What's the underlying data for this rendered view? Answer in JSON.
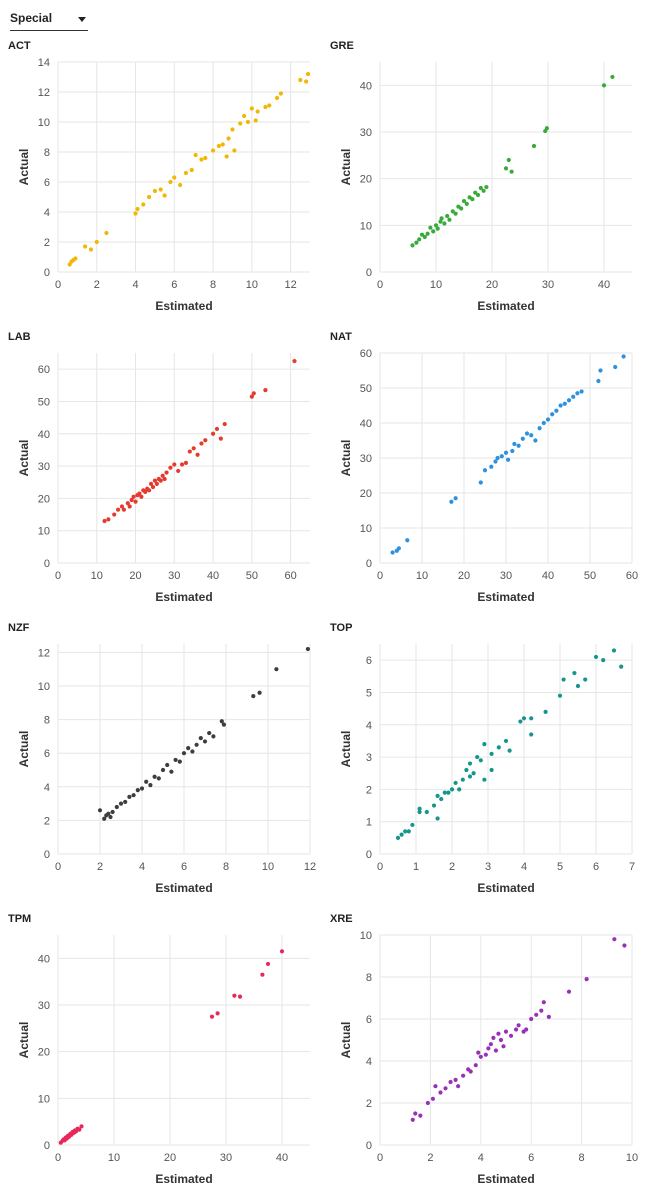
{
  "filter": {
    "selected": "Special"
  },
  "charts": [
    {
      "type": "scatter",
      "title": "ACT",
      "color": "#f2b705",
      "xlabel": "Estimated",
      "ylabel": "Actual",
      "xlim": [
        0,
        13
      ],
      "ylim": [
        0,
        14
      ],
      "xticks": [
        0,
        2,
        4,
        6,
        8,
        10,
        12
      ],
      "yticks": [
        0,
        2,
        4,
        6,
        8,
        10,
        12,
        14
      ],
      "points": [
        [
          0.6,
          0.5
        ],
        [
          0.7,
          0.7
        ],
        [
          0.8,
          0.8
        ],
        [
          0.9,
          0.9
        ],
        [
          1.4,
          1.7
        ],
        [
          1.7,
          1.5
        ],
        [
          2.0,
          2.0
        ],
        [
          2.5,
          2.6
        ],
        [
          4.0,
          3.9
        ],
        [
          4.1,
          4.2
        ],
        [
          4.4,
          4.5
        ],
        [
          4.7,
          5.0
        ],
        [
          5.0,
          5.4
        ],
        [
          5.3,
          5.5
        ],
        [
          5.5,
          5.1
        ],
        [
          5.8,
          6.0
        ],
        [
          6.0,
          6.3
        ],
        [
          6.3,
          5.8
        ],
        [
          6.6,
          6.6
        ],
        [
          6.9,
          6.8
        ],
        [
          7.1,
          7.8
        ],
        [
          7.4,
          7.5
        ],
        [
          7.6,
          7.6
        ],
        [
          8.0,
          8.1
        ],
        [
          8.3,
          8.4
        ],
        [
          8.5,
          8.5
        ],
        [
          8.7,
          7.7
        ],
        [
          8.8,
          8.9
        ],
        [
          9.0,
          9.5
        ],
        [
          9.1,
          8.1
        ],
        [
          9.4,
          9.9
        ],
        [
          9.6,
          10.4
        ],
        [
          9.8,
          10.0
        ],
        [
          10.0,
          10.9
        ],
        [
          10.2,
          10.1
        ],
        [
          10.3,
          10.7
        ],
        [
          10.7,
          11.0
        ],
        [
          10.9,
          11.1
        ],
        [
          11.3,
          11.6
        ],
        [
          11.5,
          11.9
        ],
        [
          12.5,
          12.8
        ],
        [
          12.8,
          12.7
        ],
        [
          12.9,
          13.2
        ]
      ]
    },
    {
      "type": "scatter",
      "title": "GRE",
      "color": "#3aaa3a",
      "xlabel": "Estimated",
      "ylabel": "Actual",
      "xlim": [
        0,
        45
      ],
      "ylim": [
        0,
        45
      ],
      "xticks": [
        0,
        10,
        20,
        30,
        40
      ],
      "yticks": [
        0,
        10,
        20,
        30,
        40
      ],
      "points": [
        [
          5.8,
          5.7
        ],
        [
          6.5,
          6.3
        ],
        [
          7.0,
          7.0
        ],
        [
          7.5,
          8.0
        ],
        [
          8.0,
          7.5
        ],
        [
          8.5,
          8.2
        ],
        [
          9.0,
          9.5
        ],
        [
          9.5,
          8.7
        ],
        [
          10.0,
          10.0
        ],
        [
          10.3,
          9.3
        ],
        [
          10.8,
          10.8
        ],
        [
          11.0,
          11.5
        ],
        [
          11.5,
          10.4
        ],
        [
          12.0,
          12.0
        ],
        [
          12.4,
          11.2
        ],
        [
          13.0,
          13.0
        ],
        [
          13.5,
          12.5
        ],
        [
          14.0,
          14.0
        ],
        [
          14.5,
          13.6
        ],
        [
          15.0,
          15.2
        ],
        [
          15.5,
          14.6
        ],
        [
          16.0,
          16.0
        ],
        [
          16.5,
          15.6
        ],
        [
          17.0,
          17.0
        ],
        [
          17.5,
          16.5
        ],
        [
          18.0,
          18.0
        ],
        [
          18.5,
          17.4
        ],
        [
          19.0,
          18.2
        ],
        [
          22.5,
          22.2
        ],
        [
          23.0,
          24.0
        ],
        [
          23.5,
          21.5
        ],
        [
          27.5,
          27.0
        ],
        [
          29.5,
          30.2
        ],
        [
          29.8,
          30.8
        ],
        [
          40.0,
          40.0
        ],
        [
          41.5,
          41.8
        ]
      ]
    },
    {
      "type": "scatter",
      "title": "LAB",
      "color": "#e53a2e",
      "xlabel": "Estimated",
      "ylabel": "Actual",
      "xlim": [
        0,
        65
      ],
      "ylim": [
        0,
        65
      ],
      "xticks": [
        0,
        10,
        20,
        30,
        40,
        50,
        60
      ],
      "yticks": [
        0,
        10,
        20,
        30,
        40,
        50,
        60
      ],
      "points": [
        [
          12.0,
          13.0
        ],
        [
          13.0,
          13.5
        ],
        [
          14.5,
          15.0
        ],
        [
          15.5,
          16.5
        ],
        [
          16.5,
          17.5
        ],
        [
          17.0,
          16.5
        ],
        [
          18.0,
          18.5
        ],
        [
          18.5,
          17.5
        ],
        [
          19.0,
          19.5
        ],
        [
          19.5,
          20.5
        ],
        [
          20.0,
          19.0
        ],
        [
          20.5,
          21.0
        ],
        [
          21.0,
          21.5
        ],
        [
          21.5,
          20.5
        ],
        [
          22.0,
          22.5
        ],
        [
          22.5,
          22.0
        ],
        [
          23.0,
          23.0
        ],
        [
          23.5,
          22.5
        ],
        [
          24.0,
          24.5
        ],
        [
          24.5,
          23.5
        ],
        [
          25.0,
          25.5
        ],
        [
          25.5,
          24.5
        ],
        [
          26.0,
          26.0
        ],
        [
          26.5,
          25.5
        ],
        [
          27.0,
          27.0
        ],
        [
          27.5,
          26.0
        ],
        [
          28.0,
          28.0
        ],
        [
          29.0,
          29.5
        ],
        [
          30.0,
          30.5
        ],
        [
          31.0,
          28.5
        ],
        [
          32.0,
          30.5
        ],
        [
          33.0,
          31.0
        ],
        [
          34.0,
          34.5
        ],
        [
          35.0,
          35.5
        ],
        [
          36.0,
          33.5
        ],
        [
          37.0,
          37.0
        ],
        [
          38.0,
          38.0
        ],
        [
          40.0,
          40.0
        ],
        [
          41.0,
          41.5
        ],
        [
          42.0,
          38.5
        ],
        [
          43.0,
          43.0
        ],
        [
          50.0,
          51.5
        ],
        [
          50.5,
          52.5
        ],
        [
          53.5,
          53.5
        ],
        [
          61.0,
          62.5
        ]
      ]
    },
    {
      "type": "scatter",
      "title": "NAT",
      "color": "#2f90db",
      "xlabel": "Estimated",
      "ylabel": "Actual",
      "xlim": [
        0,
        60
      ],
      "ylim": [
        0,
        60
      ],
      "xticks": [
        0,
        10,
        20,
        30,
        40,
        50,
        60
      ],
      "yticks": [
        0,
        10,
        20,
        30,
        40,
        50,
        60
      ],
      "points": [
        [
          3.0,
          3.0
        ],
        [
          4.0,
          3.5
        ],
        [
          4.5,
          4.2
        ],
        [
          6.5,
          6.5
        ],
        [
          17.0,
          17.5
        ],
        [
          18.0,
          18.5
        ],
        [
          24.0,
          23.0
        ],
        [
          25.0,
          26.5
        ],
        [
          26.5,
          27.5
        ],
        [
          27.5,
          29.0
        ],
        [
          28.0,
          30.0
        ],
        [
          29.0,
          30.5
        ],
        [
          30.0,
          31.5
        ],
        [
          30.5,
          29.5
        ],
        [
          31.5,
          32.0
        ],
        [
          32.0,
          34.0
        ],
        [
          33.0,
          33.5
        ],
        [
          34.0,
          35.5
        ],
        [
          35.0,
          37.0
        ],
        [
          36.0,
          36.5
        ],
        [
          37.0,
          35.0
        ],
        [
          38.0,
          38.5
        ],
        [
          39.0,
          40.0
        ],
        [
          40.0,
          41.0
        ],
        [
          41.0,
          42.5
        ],
        [
          42.0,
          43.5
        ],
        [
          43.0,
          45.0
        ],
        [
          44.0,
          45.5
        ],
        [
          45.0,
          46.5
        ],
        [
          46.0,
          47.5
        ],
        [
          47.0,
          48.5
        ],
        [
          48.0,
          49.0
        ],
        [
          52.0,
          52.0
        ],
        [
          52.5,
          55.0
        ],
        [
          56.0,
          56.0
        ],
        [
          58.0,
          59.0
        ]
      ]
    },
    {
      "type": "scatter",
      "title": "NZF",
      "color": "#3d3d3d",
      "xlabel": "Estimated",
      "ylabel": "Actual",
      "xlim": [
        0,
        12
      ],
      "ylim": [
        0,
        12.5
      ],
      "xticks": [
        0,
        2,
        4,
        6,
        8,
        10,
        12
      ],
      "yticks": [
        0,
        2,
        4,
        6,
        8,
        10,
        12
      ],
      "points": [
        [
          2.0,
          2.6
        ],
        [
          2.2,
          2.1
        ],
        [
          2.3,
          2.3
        ],
        [
          2.4,
          2.4
        ],
        [
          2.5,
          2.2
        ],
        [
          2.6,
          2.5
        ],
        [
          2.8,
          2.8
        ],
        [
          3.0,
          3.0
        ],
        [
          3.2,
          3.1
        ],
        [
          3.4,
          3.4
        ],
        [
          3.6,
          3.5
        ],
        [
          3.8,
          3.8
        ],
        [
          4.0,
          3.9
        ],
        [
          4.2,
          4.3
        ],
        [
          4.4,
          4.1
        ],
        [
          4.6,
          4.6
        ],
        [
          4.8,
          4.5
        ],
        [
          5.0,
          5.0
        ],
        [
          5.2,
          5.3
        ],
        [
          5.4,
          4.9
        ],
        [
          5.6,
          5.6
        ],
        [
          5.8,
          5.5
        ],
        [
          6.0,
          6.0
        ],
        [
          6.2,
          6.3
        ],
        [
          6.4,
          6.1
        ],
        [
          6.6,
          6.5
        ],
        [
          6.8,
          6.9
        ],
        [
          7.0,
          6.7
        ],
        [
          7.2,
          7.2
        ],
        [
          7.4,
          7.0
        ],
        [
          7.8,
          7.9
        ],
        [
          7.9,
          7.7
        ],
        [
          9.3,
          9.4
        ],
        [
          9.6,
          9.6
        ],
        [
          10.4,
          11.0
        ],
        [
          11.9,
          12.2
        ]
      ]
    },
    {
      "type": "scatter",
      "title": "TOP",
      "color": "#16958a",
      "xlabel": "Estimated",
      "ylabel": "Actual",
      "xlim": [
        0,
        7
      ],
      "ylim": [
        0,
        6.5
      ],
      "xticks": [
        0,
        1,
        2,
        3,
        4,
        5,
        6,
        7
      ],
      "yticks": [
        0,
        1,
        2,
        3,
        4,
        5,
        6
      ],
      "points": [
        [
          0.5,
          0.5
        ],
        [
          0.6,
          0.6
        ],
        [
          0.7,
          0.7
        ],
        [
          0.8,
          0.7
        ],
        [
          0.9,
          0.9
        ],
        [
          1.1,
          1.4
        ],
        [
          1.1,
          1.3
        ],
        [
          1.3,
          1.3
        ],
        [
          1.5,
          1.5
        ],
        [
          1.6,
          1.8
        ],
        [
          1.6,
          1.1
        ],
        [
          1.7,
          1.7
        ],
        [
          1.8,
          1.9
        ],
        [
          1.9,
          1.9
        ],
        [
          2.0,
          2.0
        ],
        [
          2.1,
          2.2
        ],
        [
          2.2,
          2.0
        ],
        [
          2.3,
          2.3
        ],
        [
          2.4,
          2.6
        ],
        [
          2.5,
          2.4
        ],
        [
          2.5,
          2.8
        ],
        [
          2.6,
          2.5
        ],
        [
          2.7,
          3.0
        ],
        [
          2.8,
          2.9
        ],
        [
          2.9,
          3.4
        ],
        [
          2.9,
          2.3
        ],
        [
          3.1,
          3.1
        ],
        [
          3.1,
          2.6
        ],
        [
          3.3,
          3.3
        ],
        [
          3.5,
          3.5
        ],
        [
          3.6,
          3.2
        ],
        [
          3.9,
          4.1
        ],
        [
          4.0,
          4.2
        ],
        [
          4.2,
          3.7
        ],
        [
          4.2,
          4.2
        ],
        [
          4.6,
          4.4
        ],
        [
          5.0,
          4.9
        ],
        [
          5.1,
          5.4
        ],
        [
          5.4,
          5.6
        ],
        [
          5.5,
          5.2
        ],
        [
          5.7,
          5.4
        ],
        [
          6.0,
          6.1
        ],
        [
          6.2,
          6.0
        ],
        [
          6.5,
          6.3
        ],
        [
          6.7,
          5.8
        ]
      ]
    },
    {
      "type": "scatter",
      "title": "TPM",
      "color": "#e8275a",
      "xlabel": "Estimated",
      "ylabel": "Actual",
      "xlim": [
        0,
        45
      ],
      "ylim": [
        0,
        45
      ],
      "xticks": [
        0,
        10,
        20,
        30,
        40
      ],
      "yticks": [
        0,
        10,
        20,
        30,
        40
      ],
      "points": [
        [
          0.5,
          0.5
        ],
        [
          0.8,
          0.9
        ],
        [
          1.0,
          1.2
        ],
        [
          1.2,
          1.0
        ],
        [
          1.4,
          1.6
        ],
        [
          1.6,
          1.4
        ],
        [
          1.8,
          2.0
        ],
        [
          2.0,
          1.8
        ],
        [
          2.2,
          2.4
        ],
        [
          2.4,
          2.2
        ],
        [
          2.6,
          2.8
        ],
        [
          2.8,
          2.6
        ],
        [
          3.0,
          3.1
        ],
        [
          3.2,
          2.9
        ],
        [
          3.5,
          3.5
        ],
        [
          3.8,
          3.3
        ],
        [
          4.2,
          4.0
        ],
        [
          27.5,
          27.5
        ],
        [
          28.5,
          28.2
        ],
        [
          31.5,
          32.0
        ],
        [
          32.5,
          31.8
        ],
        [
          36.5,
          36.5
        ],
        [
          37.5,
          38.8
        ],
        [
          40.0,
          41.5
        ]
      ]
    },
    {
      "type": "scatter",
      "title": "XRE",
      "color": "#9b30b8",
      "xlabel": "Estimated",
      "ylabel": "Actual",
      "xlim": [
        0,
        10
      ],
      "ylim": [
        0,
        10
      ],
      "xticks": [
        0,
        2,
        4,
        6,
        8,
        10
      ],
      "yticks": [
        0,
        2,
        4,
        6,
        8,
        10
      ],
      "points": [
        [
          1.3,
          1.2
        ],
        [
          1.4,
          1.5
        ],
        [
          1.6,
          1.4
        ],
        [
          1.9,
          2.0
        ],
        [
          2.1,
          2.2
        ],
        [
          2.2,
          2.8
        ],
        [
          2.4,
          2.5
        ],
        [
          2.6,
          2.7
        ],
        [
          2.8,
          3.0
        ],
        [
          3.0,
          3.1
        ],
        [
          3.1,
          2.8
        ],
        [
          3.3,
          3.3
        ],
        [
          3.5,
          3.6
        ],
        [
          3.6,
          3.5
        ],
        [
          3.8,
          3.8
        ],
        [
          3.9,
          4.4
        ],
        [
          4.0,
          4.2
        ],
        [
          4.2,
          4.3
        ],
        [
          4.3,
          4.6
        ],
        [
          4.4,
          4.8
        ],
        [
          4.5,
          5.1
        ],
        [
          4.6,
          4.5
        ],
        [
          4.7,
          5.3
        ],
        [
          4.8,
          5.0
        ],
        [
          4.9,
          4.7
        ],
        [
          5.0,
          5.4
        ],
        [
          5.2,
          5.2
        ],
        [
          5.4,
          5.5
        ],
        [
          5.5,
          5.7
        ],
        [
          5.7,
          5.4
        ],
        [
          5.8,
          5.5
        ],
        [
          6.0,
          6.0
        ],
        [
          6.2,
          6.2
        ],
        [
          6.4,
          6.4
        ],
        [
          6.5,
          6.8
        ],
        [
          6.7,
          6.1
        ],
        [
          7.5,
          7.3
        ],
        [
          8.2,
          7.9
        ],
        [
          9.3,
          9.8
        ],
        [
          9.7,
          9.5
        ]
      ]
    }
  ]
}
